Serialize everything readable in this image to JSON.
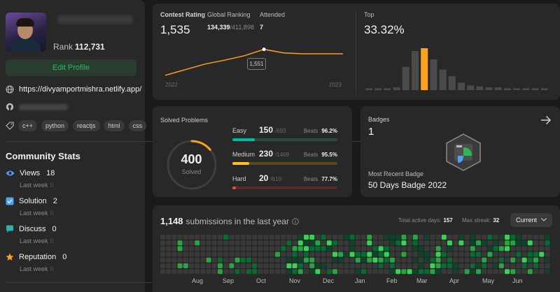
{
  "profile": {
    "rank_label": "Rank",
    "rank_value": "112,731",
    "edit_label": "Edit Profile",
    "website": "https://divyamportmishra.netlify.app/",
    "skills": [
      "c++",
      "python",
      "reactjs",
      "html",
      "css"
    ]
  },
  "community": {
    "title": "Community Stats",
    "stats": [
      {
        "label": "Views",
        "value": "18",
        "week_label": "Last week",
        "week_value": "0",
        "icon": "eye-icon",
        "color": "#4aa3ff"
      },
      {
        "label": "Solution",
        "value": "2",
        "week_label": "Last week",
        "week_value": "0",
        "icon": "check-icon",
        "color": "#4aa3ff"
      },
      {
        "label": "Discuss",
        "value": "0",
        "week_label": "Last week",
        "week_value": "0",
        "icon": "chat-icon",
        "color": "#2db2a6"
      },
      {
        "label": "Reputation",
        "value": "0",
        "week_label": "Last week",
        "week_value": "0",
        "icon": "star-icon",
        "color": "#ffa116"
      }
    ]
  },
  "contest": {
    "rating_label": "Contest Rating",
    "rating": "1,535",
    "ranking_label": "Global Ranking",
    "ranking_value": "134,339",
    "ranking_total": "/411,898",
    "attended_label": "Attended",
    "attended": "7",
    "tooltip": "1,551",
    "year_start": "2022",
    "year_end": "2023",
    "top_label": "Top",
    "top_value": "33.32%",
    "rating_history": [
      1458,
      1478,
      1498,
      1512,
      1528,
      1551,
      1538,
      1535,
      1535,
      1535
    ],
    "distribution": [
      2,
      2,
      2,
      3,
      25,
      42,
      45,
      33,
      22,
      15,
      8,
      5,
      4,
      3,
      3,
      2,
      2,
      2,
      2,
      2
    ],
    "highlight_index": 6
  },
  "solved": {
    "title": "Solved Problems",
    "total": "400",
    "total_label": "Solved",
    "progress_fraction": 0.14,
    "difficulties": [
      {
        "name": "Easy",
        "count": "150",
        "total": "/693",
        "beats_label": "Beats",
        "beats": "96.2%",
        "fraction": 0.216,
        "color": "#00b8a3",
        "track": "#2b4a44"
      },
      {
        "name": "Medium",
        "count": "230",
        "total": "/1469",
        "beats_label": "Beats",
        "beats": "95.5%",
        "fraction": 0.157,
        "color": "#ffc01e",
        "track": "#5a4a1e"
      },
      {
        "name": "Hard",
        "count": "20",
        "total": "/610",
        "beats_label": "Beats",
        "beats": "77.7%",
        "fraction": 0.033,
        "color": "#ef4743",
        "track": "#5a2a2a"
      }
    ]
  },
  "badges": {
    "label": "Badges",
    "count": "1",
    "recent_label": "Most Recent Badge",
    "recent_name": "50 Days Badge 2022"
  },
  "submissions": {
    "count": "1,148",
    "label": "submissions in the last year",
    "active_label": "Total active days:",
    "active_value": "157",
    "streak_label": "Max streak:",
    "streak_value": "32",
    "dropdown": "Current",
    "months": [
      "Aug",
      "Sep",
      "Oct",
      "Nov",
      "Dec",
      "Jan",
      "Feb",
      "Mar",
      "Apr",
      "May",
      "Jun"
    ]
  }
}
